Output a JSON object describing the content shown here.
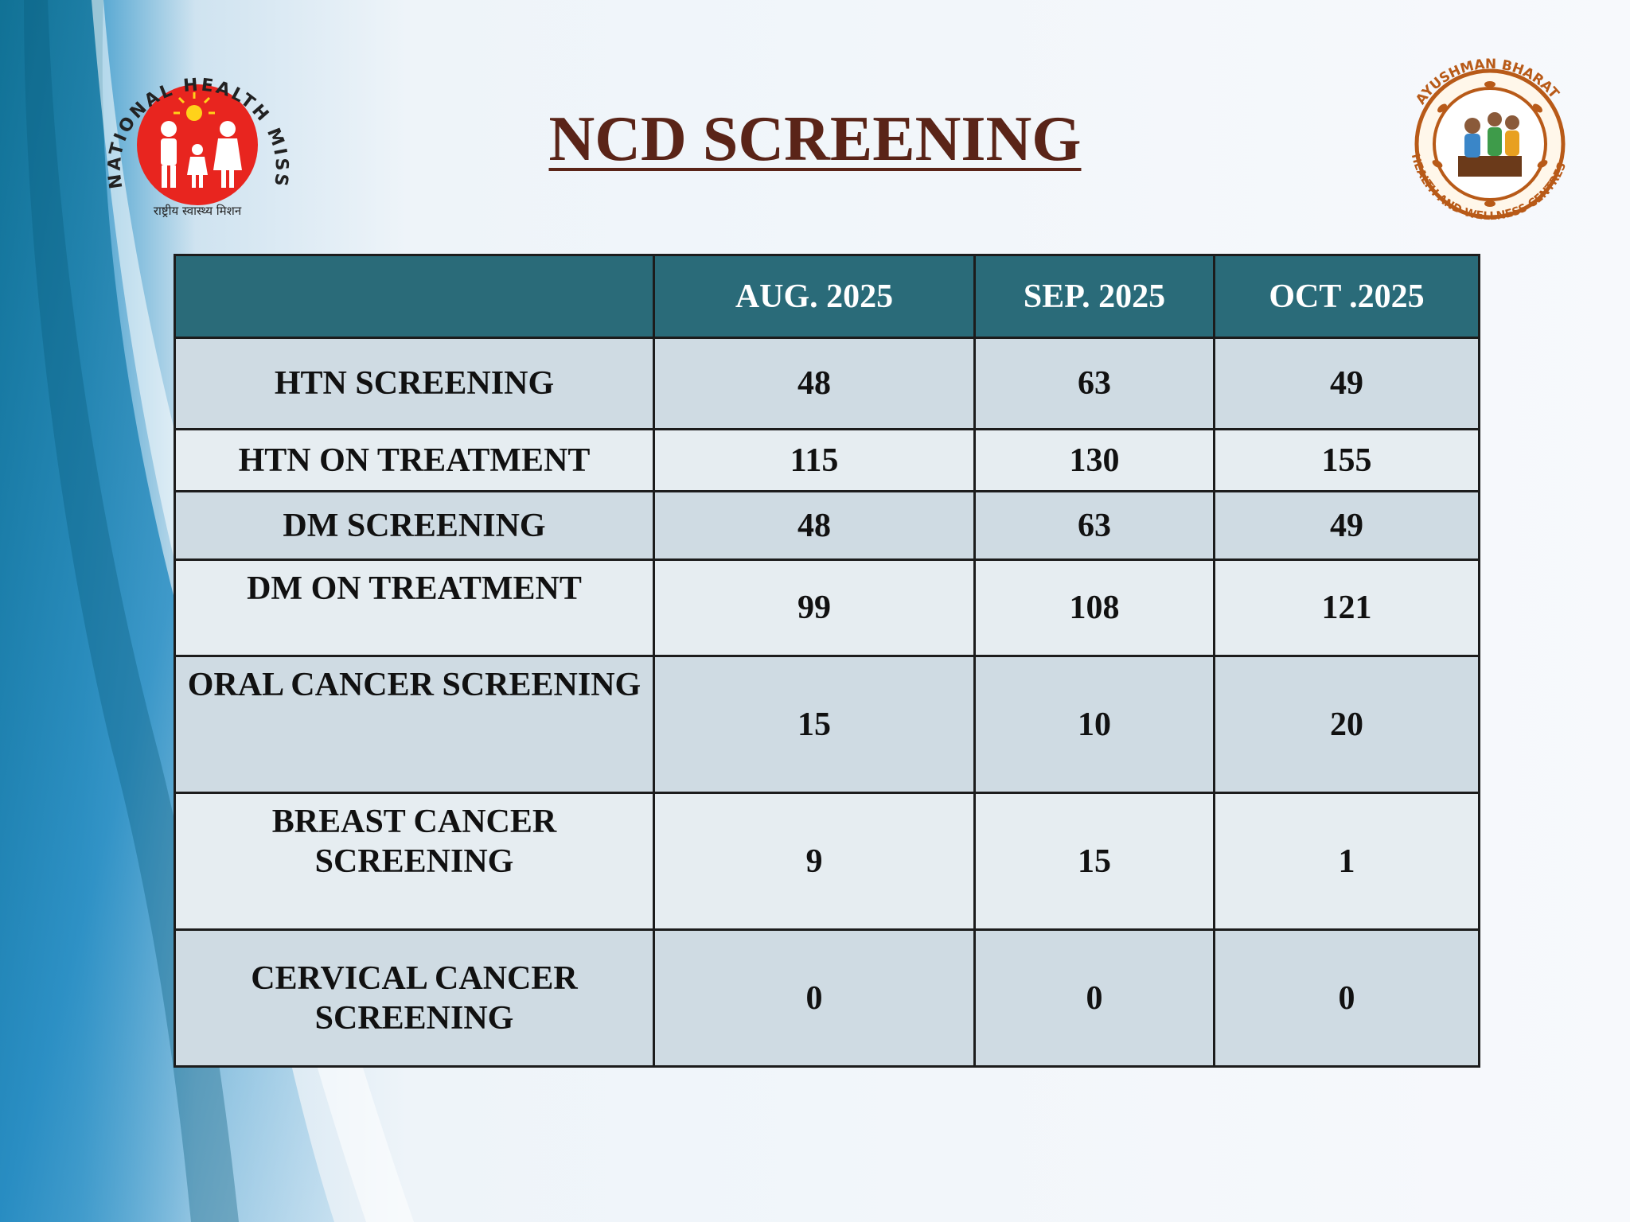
{
  "page": {
    "title": "NCD SCREENING",
    "colors": {
      "title": "#5a2418",
      "header_bg": "#2a6b79",
      "row_dark": "#cfdbe3",
      "row_light": "#e6edf1"
    }
  },
  "logos": {
    "left": {
      "icon": "national-health-mission-logo",
      "text_top": "NATIONAL HEALTH MISSION",
      "text_bottom": "राष्ट्रीय स्वास्थ्य मिशन"
    },
    "right": {
      "icon": "ayushman-bharat-logo",
      "text_top": "AYUSHMAN BHARAT",
      "text_bottom": "HEALTH AND WELLNESS CENTRES"
    }
  },
  "table": {
    "columns": [
      "",
      "AUG. 2025",
      "SEP. 2025",
      "OCT .2025"
    ],
    "rows": [
      {
        "label": "HTN SCREENING",
        "values": [
          "48",
          "63",
          "49"
        ]
      },
      {
        "label": "HTN ON TREATMENT",
        "values": [
          "115",
          "130",
          "155"
        ]
      },
      {
        "label": "DM SCREENING",
        "values": [
          "48",
          "63",
          "49"
        ]
      },
      {
        "label": "DM ON TREATMENT",
        "values": [
          "99",
          "108",
          "121"
        ]
      },
      {
        "label": "ORAL CANCER SCREENING",
        "values": [
          "15",
          "10",
          "20"
        ]
      },
      {
        "label": "BREAST CANCER SCREENING",
        "values": [
          "9",
          "15",
          "1"
        ]
      },
      {
        "label": "CERVICAL CANCER SCREENING",
        "values": [
          "0",
          "0",
          "0"
        ]
      }
    ]
  }
}
